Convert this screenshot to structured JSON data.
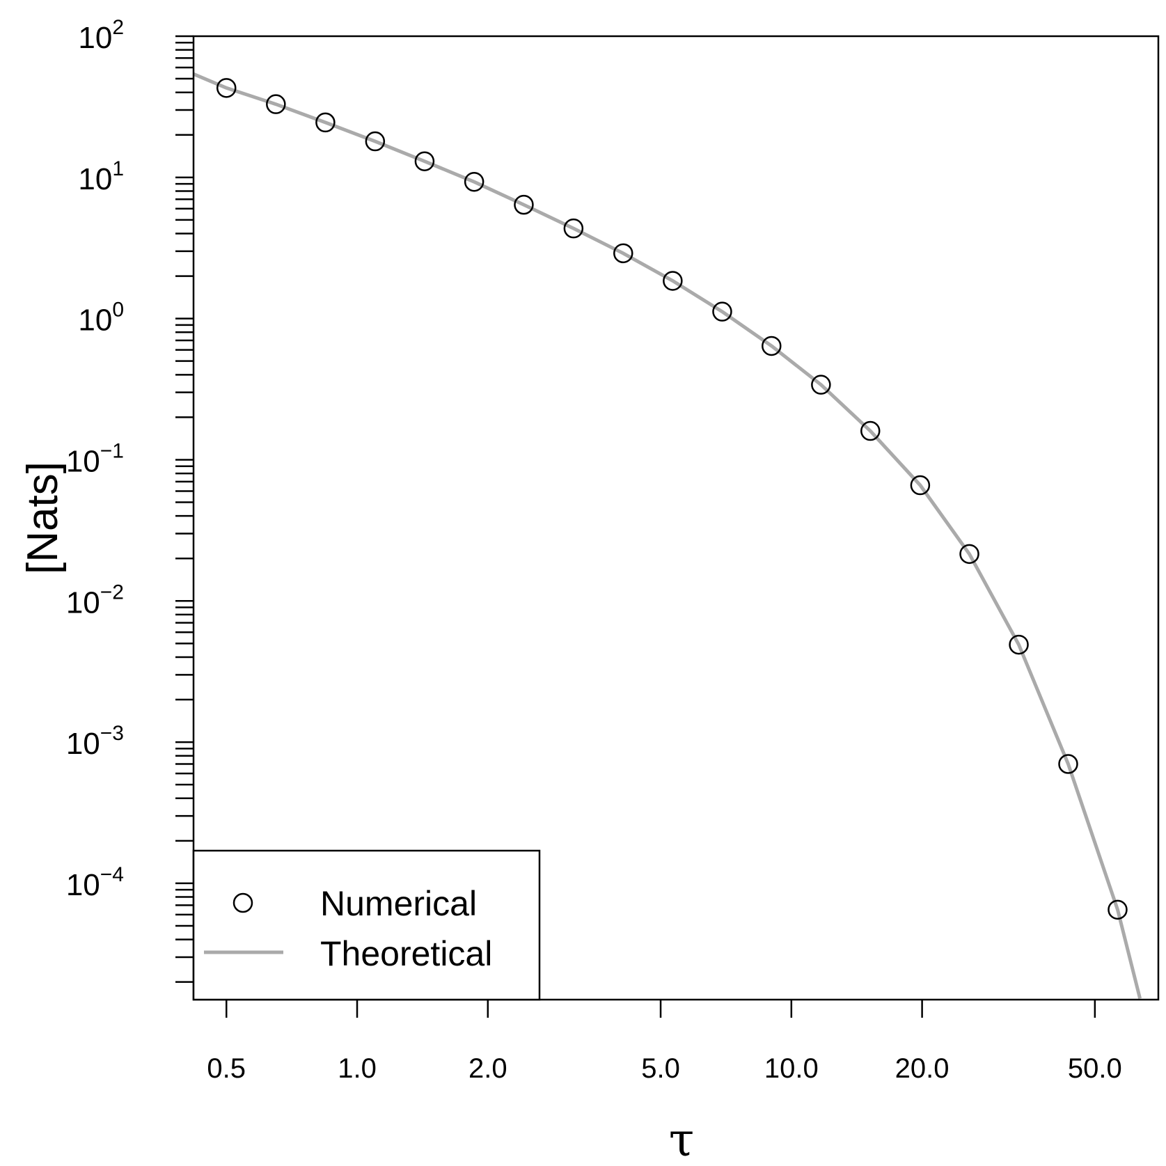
{
  "chart_data": {
    "type": "scatter",
    "title": "",
    "xlabel": "τ",
    "ylabel": "[Nats]",
    "x_scale": "log",
    "y_scale": "log",
    "xlim": [
      0.42,
      70
    ],
    "ylim": [
      1.5e-05,
      100
    ],
    "x_ticks": [
      {
        "value": 0.5,
        "label": "0.5"
      },
      {
        "value": 1.0,
        "label": "1.0"
      },
      {
        "value": 2.0,
        "label": "2.0"
      },
      {
        "value": 5.0,
        "label": "5.0"
      },
      {
        "value": 10.0,
        "label": "10.0"
      },
      {
        "value": 20.0,
        "label": "20.0"
      },
      {
        "value": 50.0,
        "label": "50.0"
      }
    ],
    "y_ticks": [
      {
        "value": 100,
        "base": "10",
        "exp": "2"
      },
      {
        "value": 10,
        "base": "10",
        "exp": "1"
      },
      {
        "value": 1,
        "base": "10",
        "exp": "0"
      },
      {
        "value": 0.1,
        "base": "10",
        "exp": "−1"
      },
      {
        "value": 0.01,
        "base": "10",
        "exp": "−2"
      },
      {
        "value": 0.001,
        "base": "10",
        "exp": "−3"
      },
      {
        "value": 0.0001,
        "base": "10",
        "exp": "−4"
      }
    ],
    "grid": false,
    "legend_position": "bottom-left",
    "series": [
      {
        "name": "Numerical",
        "style": "open-circle",
        "color": "#000000",
        "x": [
          0.5,
          0.65,
          0.845,
          1.1,
          1.43,
          1.86,
          2.42,
          3.15,
          4.1,
          5.33,
          6.93,
          9.0,
          11.7,
          15.2,
          19.8,
          25.7,
          33.4,
          43.4,
          56.4
        ],
        "y": [
          43,
          33,
          24.5,
          18,
          13,
          9.3,
          6.4,
          4.35,
          2.9,
          1.85,
          1.12,
          0.64,
          0.34,
          0.16,
          0.066,
          0.0215,
          0.0049,
          0.0007,
          6.5e-05
        ]
      },
      {
        "name": "Theoretical",
        "style": "line",
        "color": "#aaaaaa",
        "x": [
          0.42,
          0.5,
          0.65,
          0.845,
          1.1,
          1.43,
          1.86,
          2.42,
          3.15,
          4.1,
          5.33,
          6.93,
          9.0,
          11.7,
          15.2,
          19.8,
          25.7,
          33.4,
          43.4,
          56.4,
          63.5
        ],
        "y": [
          54,
          43,
          33,
          24.5,
          18,
          13,
          9.3,
          6.4,
          4.35,
          2.9,
          1.85,
          1.12,
          0.64,
          0.34,
          0.16,
          0.066,
          0.0215,
          0.0049,
          0.0007,
          6.5e-05,
          1.53e-05
        ]
      }
    ]
  }
}
